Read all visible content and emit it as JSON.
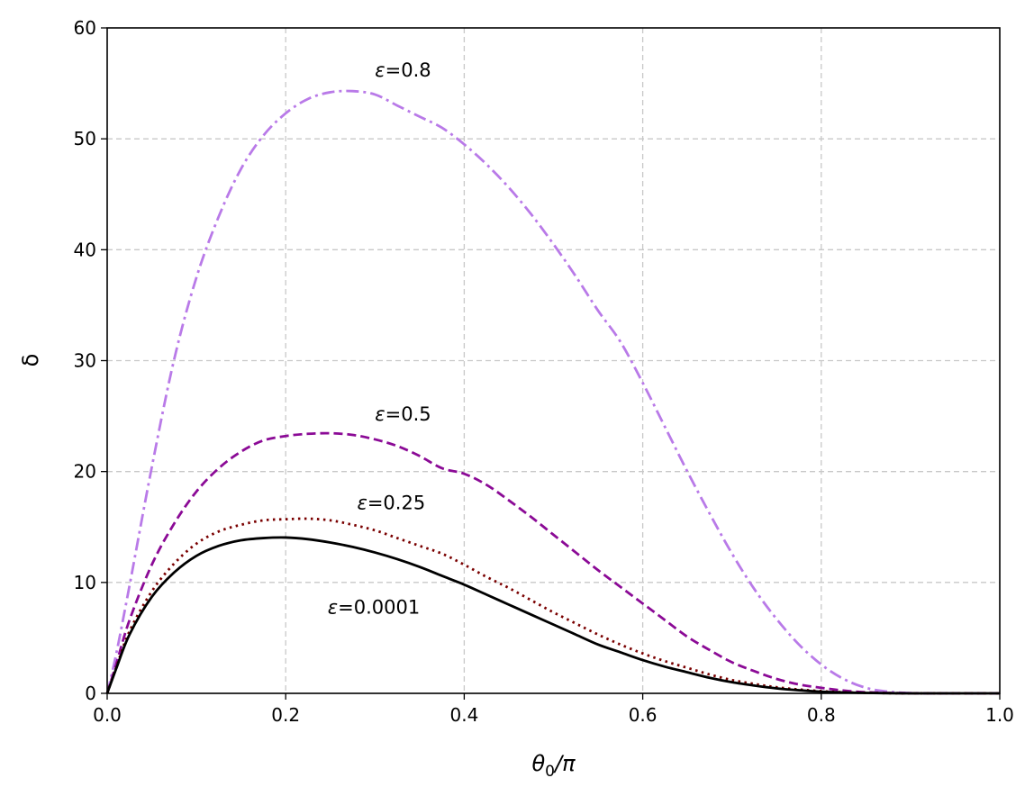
{
  "chart_data": {
    "type": "line",
    "title": "",
    "xlabel_main": "θ",
    "xlabel_sub": "0",
    "xlabel_rest": "/π",
    "ylabel": "δ",
    "xlim": [
      0.0,
      1.0
    ],
    "ylim": [
      0,
      60
    ],
    "x_ticks": [
      0.0,
      0.2,
      0.4,
      0.6,
      0.8,
      1.0
    ],
    "x_tick_labels": [
      "0.0",
      "0.2",
      "0.4",
      "0.6",
      "0.8",
      "1.0"
    ],
    "y_ticks": [
      0,
      10,
      20,
      30,
      40,
      50,
      60
    ],
    "y_tick_labels": [
      "0",
      "10",
      "20",
      "30",
      "40",
      "50",
      "60"
    ],
    "grid": true,
    "legend": "none",
    "series": [
      {
        "label": "ε=0.8",
        "color": "#b97ae8",
        "dash": "dashdot",
        "label_x": 0.3,
        "label_y": 55.6,
        "x": [
          0.0,
          0.01,
          0.025,
          0.05,
          0.075,
          0.1,
          0.125,
          0.15,
          0.175,
          0.2,
          0.225,
          0.25,
          0.275,
          0.3,
          0.325,
          0.35,
          0.375,
          0.4,
          0.425,
          0.45,
          0.475,
          0.5,
          0.525,
          0.55,
          0.575,
          0.6,
          0.625,
          0.65,
          0.675,
          0.7,
          0.725,
          0.75,
          0.775,
          0.8,
          0.825,
          0.85,
          0.875,
          0.9,
          0.925,
          0.95,
          0.975,
          1.0
        ],
        "y": [
          0.0,
          3.5,
          9.7,
          20.4,
          30.1,
          37.5,
          43.0,
          47.3,
          50.3,
          52.3,
          53.6,
          54.2,
          54.3,
          54.0,
          53.0,
          52.0,
          51.0,
          49.5,
          47.7,
          45.6,
          43.2,
          40.5,
          37.6,
          34.5,
          31.7,
          28.0,
          24.0,
          20.0,
          16.2,
          12.6,
          9.4,
          6.7,
          4.4,
          2.6,
          1.3,
          0.5,
          0.15,
          0.03,
          0.0,
          0.0,
          0.0,
          0.0
        ]
      },
      {
        "label": "ε=0.5",
        "color": "#8b0a96",
        "dash": "dashed",
        "label_x": 0.3,
        "label_y": 24.6,
        "x": [
          0.0,
          0.01,
          0.025,
          0.05,
          0.075,
          0.1,
          0.125,
          0.15,
          0.175,
          0.2,
          0.225,
          0.25,
          0.275,
          0.3,
          0.325,
          0.35,
          0.375,
          0.4,
          0.425,
          0.45,
          0.475,
          0.5,
          0.525,
          0.55,
          0.575,
          0.6,
          0.625,
          0.65,
          0.675,
          0.7,
          0.725,
          0.75,
          0.775,
          0.8,
          0.825,
          0.85,
          0.875,
          0.9,
          0.925,
          0.95,
          0.975,
          1.0
        ],
        "y": [
          0.0,
          2.6,
          6.6,
          11.6,
          15.3,
          18.2,
          20.3,
          21.8,
          22.8,
          23.2,
          23.4,
          23.45,
          23.3,
          22.9,
          22.3,
          21.4,
          20.3,
          19.8,
          18.8,
          17.4,
          15.9,
          14.3,
          12.7,
          11.1,
          9.6,
          8.1,
          6.6,
          5.1,
          3.9,
          2.8,
          2.0,
          1.3,
          0.8,
          0.5,
          0.25,
          0.1,
          0.04,
          0.01,
          0.0,
          0.0,
          0.0,
          0.0
        ]
      },
      {
        "label": "ε=0.25",
        "color": "#7a0000",
        "dash": "dotted",
        "label_x": 0.28,
        "label_y": 16.6,
        "x": [
          0.0,
          0.01,
          0.025,
          0.05,
          0.075,
          0.1,
          0.125,
          0.15,
          0.175,
          0.2,
          0.225,
          0.25,
          0.275,
          0.3,
          0.325,
          0.35,
          0.375,
          0.4,
          0.425,
          0.45,
          0.475,
          0.5,
          0.525,
          0.55,
          0.575,
          0.6,
          0.625,
          0.65,
          0.675,
          0.7,
          0.725,
          0.75,
          0.775,
          0.8,
          0.825,
          0.85,
          0.875,
          0.9,
          0.925,
          0.95,
          0.975,
          1.0
        ],
        "y": [
          0.0,
          2.3,
          5.6,
          9.2,
          11.7,
          13.5,
          14.6,
          15.2,
          15.6,
          15.7,
          15.75,
          15.6,
          15.2,
          14.7,
          14.0,
          13.3,
          12.6,
          11.6,
          10.5,
          9.5,
          8.4,
          7.3,
          6.3,
          5.3,
          4.4,
          3.6,
          2.9,
          2.3,
          1.7,
          1.2,
          0.85,
          0.55,
          0.35,
          0.2,
          0.1,
          0.05,
          0.02,
          0.0,
          0.0,
          0.0,
          0.0,
          0.0
        ]
      },
      {
        "label": "ε=0.0001",
        "color": "#000000",
        "dash": "solid",
        "label_x": 0.247,
        "label_y": 7.2,
        "x": [
          0.0,
          0.01,
          0.025,
          0.05,
          0.075,
          0.1,
          0.125,
          0.15,
          0.175,
          0.2,
          0.225,
          0.25,
          0.275,
          0.3,
          0.325,
          0.35,
          0.375,
          0.4,
          0.425,
          0.45,
          0.475,
          0.5,
          0.525,
          0.55,
          0.575,
          0.6,
          0.625,
          0.65,
          0.675,
          0.7,
          0.725,
          0.75,
          0.775,
          0.8,
          0.825,
          0.85,
          0.875,
          0.9,
          0.925,
          0.95,
          0.975,
          1.0
        ],
        "y": [
          0.0,
          2.2,
          5.3,
          8.7,
          10.9,
          12.4,
          13.3,
          13.8,
          14.0,
          14.05,
          13.9,
          13.6,
          13.2,
          12.7,
          12.1,
          11.4,
          10.6,
          9.8,
          8.9,
          8.0,
          7.1,
          6.2,
          5.3,
          4.4,
          3.7,
          3.0,
          2.4,
          1.9,
          1.4,
          1.0,
          0.7,
          0.45,
          0.28,
          0.15,
          0.08,
          0.04,
          0.015,
          0.0,
          0.0,
          0.0,
          0.0,
          0.0
        ]
      }
    ]
  }
}
